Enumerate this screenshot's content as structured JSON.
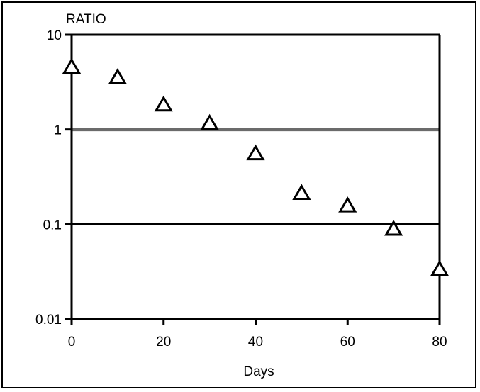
{
  "chart_data": {
    "type": "scatter",
    "title": "",
    "ylabel": "RATIO",
    "xlabel": "Days",
    "x_scale": "linear",
    "y_scale": "log",
    "xlim": [
      0,
      80
    ],
    "ylim": [
      0.01,
      10
    ],
    "x_ticks": [
      0,
      20,
      40,
      60,
      80
    ],
    "x_tick_labels": [
      "0",
      "20",
      "40",
      "60",
      "80"
    ],
    "y_ticks": [
      10,
      1,
      0.1,
      0.01
    ],
    "y_tick_labels": [
      "10",
      "1",
      "0.1",
      "0.01"
    ],
    "reference_lines": [
      {
        "y": 1,
        "color": "#6b6b6b"
      },
      {
        "y": 0.1,
        "color": "#000000"
      }
    ],
    "marker": "open-triangle",
    "series": [
      {
        "x": [
          0,
          10,
          20,
          30,
          40,
          50,
          60,
          70,
          80
        ],
        "y": [
          4.5,
          3.5,
          1.8,
          1.15,
          0.55,
          0.21,
          0.155,
          0.088,
          0.033
        ]
      }
    ],
    "grid": false,
    "legend": "none"
  }
}
